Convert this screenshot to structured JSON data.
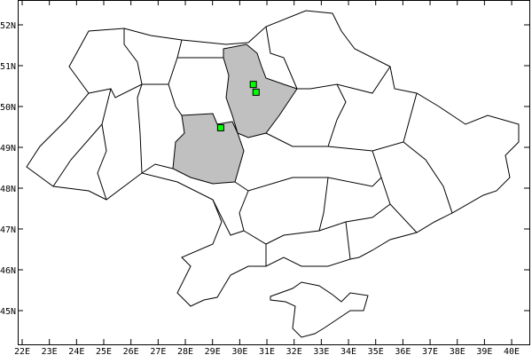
{
  "map": {
    "projection": "lat-lon",
    "lon_range": [
      21.5,
      40.6
    ],
    "lat_range": [
      44.2,
      52.6
    ],
    "lon_ticks": [
      "22E",
      "23E",
      "24E",
      "25E",
      "26E",
      "27E",
      "28E",
      "29E",
      "30E",
      "31E",
      "32E",
      "33E",
      "34E",
      "35E",
      "36E",
      "37E",
      "38E",
      "39E",
      "40E"
    ],
    "lat_ticks": [
      "52N",
      "51N",
      "50N",
      "49N",
      "48N",
      "47N",
      "46N",
      "45N"
    ],
    "highlighted_regions": [
      "Kyiv Oblast",
      "Vinnytsia Oblast"
    ],
    "highlight_color": "#c0c0c0",
    "marker_color": "#00ff00",
    "markers": [
      {
        "lon": 30.5,
        "lat": 50.54
      },
      {
        "lon": 30.6,
        "lat": 50.35
      },
      {
        "lon": 29.3,
        "lat": 49.48
      }
    ]
  }
}
